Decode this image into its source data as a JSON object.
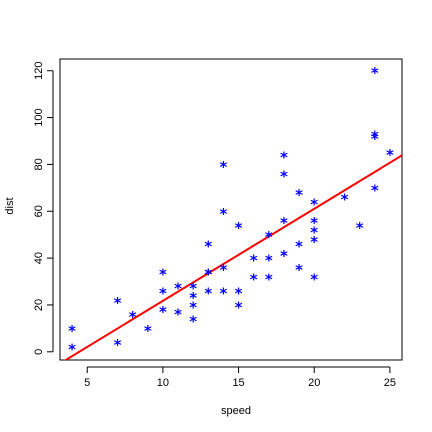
{
  "chart_data": {
    "type": "scatter",
    "title": "",
    "xlabel": "speed",
    "ylabel": "dist",
    "xlim": [
      3.2,
      25.8
    ],
    "ylim": [
      -3.5,
      125
    ],
    "xticks": [
      5,
      10,
      15,
      20,
      25
    ],
    "yticks": [
      0,
      20,
      40,
      60,
      80,
      100,
      120
    ],
    "grid": false,
    "legend": "none",
    "marker_glyph": "*",
    "point_color": "#0000ff",
    "line_color": "#ff0000",
    "series": [
      {
        "points": [
          [
            4,
            2
          ],
          [
            4,
            10
          ],
          [
            7,
            4
          ],
          [
            7,
            22
          ],
          [
            8,
            16
          ],
          [
            9,
            10
          ],
          [
            10,
            18
          ],
          [
            10,
            26
          ],
          [
            10,
            34
          ],
          [
            11,
            17
          ],
          [
            11,
            28
          ],
          [
            12,
            14
          ],
          [
            12,
            20
          ],
          [
            12,
            24
          ],
          [
            12,
            28
          ],
          [
            13,
            26
          ],
          [
            13,
            34
          ],
          [
            13,
            34
          ],
          [
            13,
            46
          ],
          [
            14,
            26
          ],
          [
            14,
            36
          ],
          [
            14,
            60
          ],
          [
            14,
            80
          ],
          [
            15,
            20
          ],
          [
            15,
            26
          ],
          [
            15,
            54
          ],
          [
            16,
            32
          ],
          [
            16,
            40
          ],
          [
            17,
            32
          ],
          [
            17,
            40
          ],
          [
            17,
            50
          ],
          [
            18,
            42
          ],
          [
            18,
            56
          ],
          [
            18,
            76
          ],
          [
            18,
            84
          ],
          [
            19,
            36
          ],
          [
            19,
            46
          ],
          [
            19,
            68
          ],
          [
            20,
            32
          ],
          [
            20,
            48
          ],
          [
            20,
            52
          ],
          [
            20,
            56
          ],
          [
            20,
            64
          ],
          [
            22,
            66
          ],
          [
            23,
            54
          ],
          [
            24,
            70
          ],
          [
            24,
            92
          ],
          [
            24,
            93
          ],
          [
            24,
            120
          ],
          [
            25,
            85
          ]
        ]
      }
    ],
    "regression_line": {
      "intercept": -17.58,
      "slope": 3.932
    }
  }
}
